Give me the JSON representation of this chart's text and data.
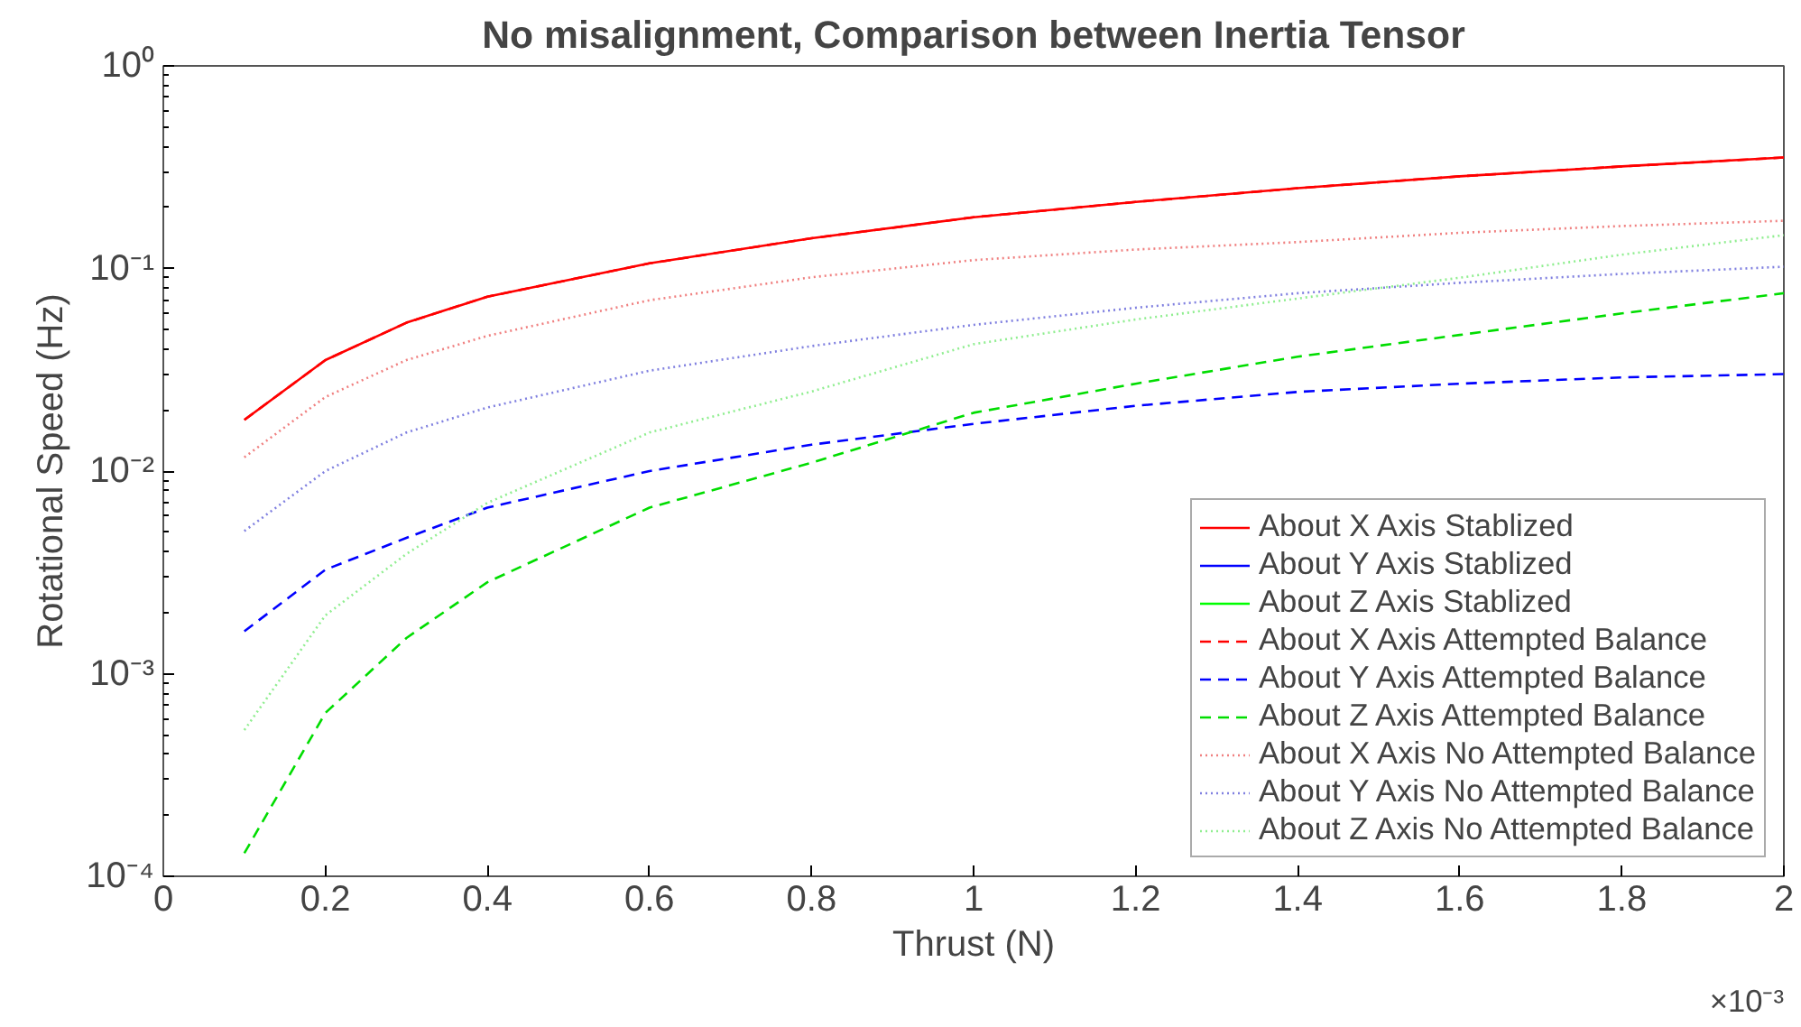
{
  "chart_data": {
    "type": "line",
    "title": "No misalignment, Comparison between Inertia Tensor",
    "xlabel": "Thrust (N)",
    "ylabel": "Rotational Speed (Hz)",
    "annotations": [
      "×10⁻³"
    ],
    "x": [
      0.1,
      0.2,
      0.3,
      0.4,
      0.6,
      0.8,
      1.0,
      1.2,
      1.4,
      1.6,
      1.8,
      2.0
    ],
    "series": [
      {
        "name": "About X Axis Stablized",
        "color": "#ff0000",
        "line_style": "solid",
        "values": [
          0.0179,
          0.0353,
          0.054,
          0.0726,
          0.106,
          0.141,
          0.179,
          0.213,
          0.249,
          0.285,
          0.319,
          0.353
        ]
      },
      {
        "name": "About Y Axis Stablized",
        "color": "#0000ff",
        "line_style": "solid",
        "values": [
          null,
          null,
          null,
          null,
          null,
          null,
          null,
          null,
          null,
          null,
          null,
          null
        ]
      },
      {
        "name": "About Z Axis Stablized",
        "color": "#00ff00",
        "line_style": "solid",
        "values": [
          null,
          null,
          null,
          null,
          null,
          null,
          null,
          null,
          null,
          null,
          null,
          null
        ]
      },
      {
        "name": "About X Axis Attempted Balance",
        "color": "#ff0000",
        "line_style": "dashed",
        "values": [
          0.0179,
          0.0353,
          0.054,
          0.0726,
          0.106,
          0.141,
          0.179,
          0.213,
          0.249,
          0.285,
          0.319,
          0.353
        ]
      },
      {
        "name": "About Y Axis Attempted Balance",
        "color": "#0000ff",
        "line_style": "dashed",
        "values": [
          0.00162,
          0.00326,
          0.00468,
          0.0066,
          0.01,
          0.0135,
          0.0171,
          0.021,
          0.0246,
          0.027,
          0.029,
          0.0301
        ]
      },
      {
        "name": "About Z Axis Attempted Balance",
        "color": "#00dd00",
        "line_style": "dashed",
        "values": [
          0.00013,
          0.00064,
          0.0015,
          0.00283,
          0.0066,
          0.011,
          0.0194,
          0.027,
          0.0367,
          0.047,
          0.06,
          0.0755
        ]
      },
      {
        "name": "About X Axis No Attempted Balance",
        "color": "#f08080",
        "line_style": "dotted",
        "values": [
          0.0117,
          0.0232,
          0.0353,
          0.0465,
          0.0697,
          0.0905,
          0.11,
          0.124,
          0.135,
          0.15,
          0.162,
          0.172
        ]
      },
      {
        "name": "About Y Axis No Attempted Balance",
        "color": "#8080e0",
        "line_style": "dotted",
        "values": [
          0.00506,
          0.01,
          0.0155,
          0.0206,
          0.0313,
          0.0414,
          0.0527,
          0.064,
          0.0755,
          0.085,
          0.094,
          0.102
        ]
      },
      {
        "name": "About Z Axis No Attempted Balance",
        "color": "#90ee90",
        "line_style": "dotted",
        "values": [
          0.000527,
          0.00194,
          0.0039,
          0.00697,
          0.0155,
          0.0247,
          0.0423,
          0.056,
          0.0711,
          0.09,
          0.117,
          0.146
        ]
      }
    ],
    "xlim": [
      0,
      2
    ],
    "xticks": [
      0,
      0.2,
      0.4,
      0.6,
      0.8,
      1,
      1.2,
      1.4,
      1.6,
      1.8,
      2
    ],
    "ylim": [
      0.0001,
      1
    ],
    "yticks": [
      {
        "value": 0.0001,
        "label": "10⁻⁴"
      },
      {
        "value": 0.001,
        "label": "10⁻³"
      },
      {
        "value": 0.01,
        "label": "10⁻²"
      },
      {
        "value": 0.1,
        "label": "10⁻¹"
      },
      {
        "value": 1,
        "label": "10⁰"
      }
    ],
    "log": true,
    "grid": false,
    "legend": "bottom right"
  }
}
